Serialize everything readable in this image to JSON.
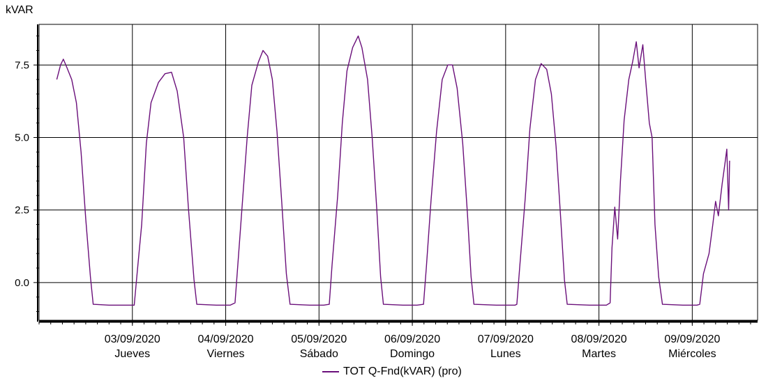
{
  "y_unit_label": "kVAR",
  "legend_label": "TOT Q-Fnd(kVAR) (pro)",
  "colors": {
    "series": "#6a0f7a",
    "grid": "#000000",
    "background": "#ffffff"
  },
  "chart_data": {
    "type": "line",
    "title": "",
    "xlabel": "",
    "ylabel": "kVAR",
    "ylim": [
      -1.3,
      8.9
    ],
    "xlim": [
      0,
      7.7
    ],
    "x_unit": "days from 02/09/2020 00:00",
    "yticks": [
      "0.0",
      "2.5",
      "5.0",
      "7.5"
    ],
    "ytick_values": [
      0,
      2.5,
      5.0,
      7.5
    ],
    "xticks": [
      {
        "date": "03/09/2020",
        "day": "Jueves"
      },
      {
        "date": "04/09/2020",
        "day": "Viernes"
      },
      {
        "date": "05/09/2020",
        "day": "Sábado"
      },
      {
        "date": "06/09/2020",
        "day": "Domingo"
      },
      {
        "date": "07/09/2020",
        "day": "Lunes"
      },
      {
        "date": "08/09/2020",
        "day": "Martes"
      },
      {
        "date": "09/09/2020",
        "day": "Miércoles"
      }
    ],
    "grid": true,
    "legend_position": "bottom-center",
    "series": [
      {
        "name": "TOT Q-Fnd(kVAR) (pro)",
        "points": [
          [
            0.19,
            7.0
          ],
          [
            0.23,
            7.5
          ],
          [
            0.26,
            7.7
          ],
          [
            0.3,
            7.4
          ],
          [
            0.35,
            7.0
          ],
          [
            0.4,
            6.2
          ],
          [
            0.45,
            4.5
          ],
          [
            0.5,
            2.2
          ],
          [
            0.55,
            0.2
          ],
          [
            0.58,
            -0.75
          ],
          [
            0.75,
            -0.78
          ],
          [
            0.95,
            -0.78
          ],
          [
            1.02,
            -0.78
          ],
          [
            1.05,
            0.3
          ],
          [
            1.1,
            2.0
          ],
          [
            1.15,
            4.8
          ],
          [
            1.2,
            6.2
          ],
          [
            1.28,
            6.9
          ],
          [
            1.35,
            7.2
          ],
          [
            1.42,
            7.25
          ],
          [
            1.48,
            6.6
          ],
          [
            1.55,
            5.0
          ],
          [
            1.6,
            2.6
          ],
          [
            1.66,
            0.1
          ],
          [
            1.69,
            -0.75
          ],
          [
            1.9,
            -0.78
          ],
          [
            2.05,
            -0.78
          ],
          [
            2.1,
            -0.7
          ],
          [
            2.13,
            0.6
          ],
          [
            2.18,
            2.8
          ],
          [
            2.23,
            5.0
          ],
          [
            2.28,
            6.8
          ],
          [
            2.35,
            7.6
          ],
          [
            2.4,
            8.0
          ],
          [
            2.45,
            7.8
          ],
          [
            2.5,
            7.0
          ],
          [
            2.55,
            5.2
          ],
          [
            2.6,
            2.8
          ],
          [
            2.65,
            0.3
          ],
          [
            2.69,
            -0.75
          ],
          [
            2.9,
            -0.78
          ],
          [
            3.05,
            -0.78
          ],
          [
            3.11,
            -0.75
          ],
          [
            3.14,
            0.6
          ],
          [
            3.2,
            3.0
          ],
          [
            3.25,
            5.5
          ],
          [
            3.3,
            7.3
          ],
          [
            3.36,
            8.1
          ],
          [
            3.42,
            8.5
          ],
          [
            3.46,
            8.1
          ],
          [
            3.52,
            7.0
          ],
          [
            3.57,
            5.0
          ],
          [
            3.62,
            2.5
          ],
          [
            3.66,
            0.2
          ],
          [
            3.69,
            -0.75
          ],
          [
            3.9,
            -0.78
          ],
          [
            4.05,
            -0.78
          ],
          [
            4.12,
            -0.75
          ],
          [
            4.15,
            0.5
          ],
          [
            4.2,
            2.8
          ],
          [
            4.26,
            5.2
          ],
          [
            4.32,
            7.0
          ],
          [
            4.38,
            7.5
          ],
          [
            4.43,
            7.5
          ],
          [
            4.48,
            6.7
          ],
          [
            4.54,
            4.8
          ],
          [
            4.59,
            2.4
          ],
          [
            4.63,
            0.2
          ],
          [
            4.66,
            -0.75
          ],
          [
            4.9,
            -0.78
          ],
          [
            5.1,
            -0.78
          ],
          [
            5.12,
            -0.75
          ],
          [
            5.15,
            0.5
          ],
          [
            5.21,
            2.9
          ],
          [
            5.26,
            5.3
          ],
          [
            5.32,
            7.0
          ],
          [
            5.38,
            7.55
          ],
          [
            5.44,
            7.35
          ],
          [
            5.49,
            6.5
          ],
          [
            5.54,
            4.7
          ],
          [
            5.59,
            2.2
          ],
          [
            5.63,
            0.1
          ],
          [
            5.66,
            -0.75
          ],
          [
            5.9,
            -0.78
          ],
          [
            6.08,
            -0.78
          ],
          [
            6.12,
            -0.7
          ],
          [
            6.14,
            1.2
          ],
          [
            6.17,
            2.6
          ],
          [
            6.2,
            1.5
          ],
          [
            6.23,
            3.5
          ],
          [
            6.27,
            5.6
          ],
          [
            6.32,
            7.0
          ],
          [
            6.36,
            7.6
          ],
          [
            6.4,
            8.3
          ],
          [
            6.43,
            7.4
          ],
          [
            6.47,
            8.2
          ],
          [
            6.5,
            7.0
          ],
          [
            6.54,
            5.5
          ],
          [
            6.57,
            5.0
          ],
          [
            6.6,
            2.0
          ],
          [
            6.64,
            0.2
          ],
          [
            6.68,
            -0.75
          ],
          [
            6.9,
            -0.78
          ],
          [
            7.05,
            -0.78
          ],
          [
            7.08,
            -0.75
          ],
          [
            7.12,
            0.3
          ],
          [
            7.18,
            1.0
          ],
          [
            7.22,
            2.0
          ],
          [
            7.25,
            2.8
          ],
          [
            7.28,
            2.3
          ],
          [
            7.32,
            3.4
          ],
          [
            7.35,
            4.1
          ],
          [
            7.37,
            4.6
          ],
          [
            7.39,
            2.5
          ],
          [
            7.4,
            4.2
          ]
        ]
      }
    ]
  }
}
